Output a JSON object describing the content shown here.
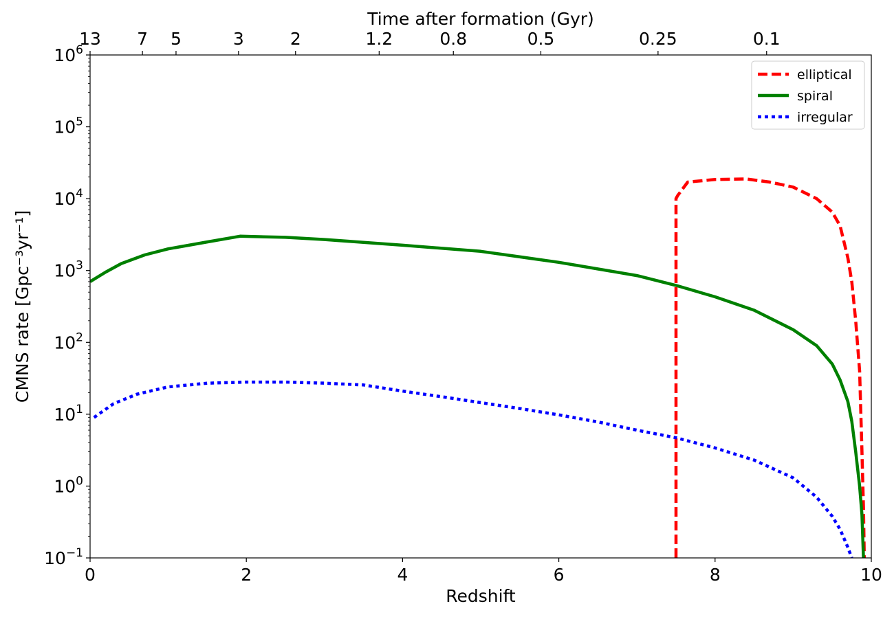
{
  "chart_data": {
    "type": "line",
    "yscale": "log",
    "xlim": [
      0,
      10
    ],
    "ylim": [
      0.1,
      1000000
    ],
    "xlabel": "Redshift",
    "ylabel": "CMNS rate [Gpc⁻³yr⁻¹]",
    "x_ticks": [
      0,
      2,
      4,
      6,
      8,
      10
    ],
    "x_tick_labels": [
      "0",
      "2",
      "4",
      "6",
      "8",
      "10"
    ],
    "y_ticks": [
      0.1,
      1,
      10,
      100,
      1000,
      10000,
      100000,
      1000000
    ],
    "y_tick_labels": [
      {
        "base": "10",
        "exp": "−1"
      },
      {
        "base": "10",
        "exp": "0"
      },
      {
        "base": "10",
        "exp": "1"
      },
      {
        "base": "10",
        "exp": "2"
      },
      {
        "base": "10",
        "exp": "3"
      },
      {
        "base": "10",
        "exp": "4"
      },
      {
        "base": "10",
        "exp": "5"
      },
      {
        "base": "10",
        "exp": "6"
      }
    ],
    "top_axis": {
      "label": "Time after formation (Gyr)",
      "ticks": [
        {
          "z": 0.0,
          "label": "13"
        },
        {
          "z": 0.67,
          "label": "7"
        },
        {
          "z": 1.1,
          "label": "5"
        },
        {
          "z": 1.9,
          "label": "3"
        },
        {
          "z": 2.63,
          "label": "2"
        },
        {
          "z": 3.7,
          "label": "1.2"
        },
        {
          "z": 4.65,
          "label": "0.8"
        },
        {
          "z": 5.77,
          "label": "0.5"
        },
        {
          "z": 7.27,
          "label": "0.25"
        },
        {
          "z": 8.66,
          "label": "0.1"
        }
      ]
    },
    "legend_position": "top-right",
    "series": [
      {
        "name": "elliptical",
        "color": "#ff0000",
        "style": "dashed",
        "x": [
          7.5,
          7.5,
          7.52,
          7.65,
          8.0,
          8.4,
          8.7,
          9.0,
          9.3,
          9.5,
          9.6,
          9.7,
          9.75,
          9.8,
          9.85,
          9.88,
          9.9,
          9.91
        ],
        "y": [
          0.1,
          10000,
          11000,
          17000,
          18500,
          18800,
          17000,
          14500,
          10000,
          6500,
          4200,
          1500,
          700,
          200,
          40,
          3,
          0.5,
          0.1
        ]
      },
      {
        "name": "spiral",
        "color": "#008000",
        "style": "solid",
        "x": [
          0.0,
          0.2,
          0.4,
          0.7,
          1.0,
          1.5,
          1.92,
          2.5,
          3.0,
          4.0,
          5.0,
          6.0,
          7.0,
          7.5,
          8.0,
          8.5,
          9.0,
          9.3,
          9.5,
          9.6,
          9.7,
          9.75,
          9.8,
          9.85,
          9.88,
          9.9
        ],
        "y": [
          700,
          950,
          1250,
          1650,
          2000,
          2500,
          3000,
          2900,
          2700,
          2250,
          1850,
          1300,
          850,
          620,
          430,
          280,
          150,
          90,
          50,
          30,
          15,
          8,
          3,
          1,
          0.4,
          0.1
        ]
      },
      {
        "name": "irregular",
        "color": "#0000ff",
        "style": "dotted",
        "x": [
          0.05,
          0.3,
          0.6,
          1.0,
          1.5,
          2.0,
          2.5,
          3.0,
          3.5,
          4.0,
          4.5,
          5.0,
          5.5,
          6.0,
          6.5,
          7.0,
          7.5,
          8.0,
          8.5,
          9.0,
          9.3,
          9.5,
          9.6,
          9.7,
          9.75
        ],
        "y": [
          9,
          14,
          19,
          24,
          27,
          28,
          28,
          27,
          25.5,
          21,
          17.5,
          14.5,
          12,
          9.8,
          7.8,
          6.0,
          4.7,
          3.4,
          2.3,
          1.3,
          0.7,
          0.38,
          0.25,
          0.14,
          0.1
        ]
      }
    ]
  }
}
